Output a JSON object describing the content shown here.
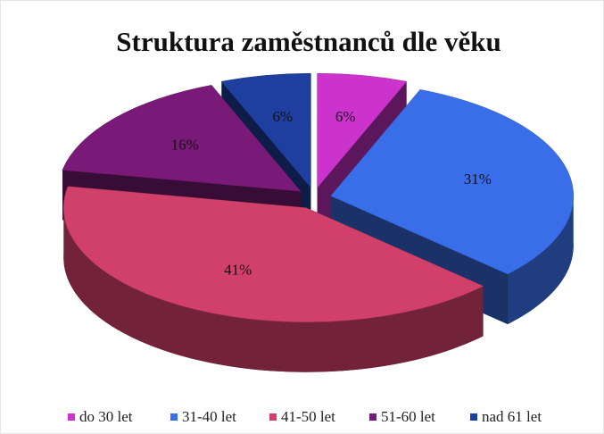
{
  "chart_data": {
    "type": "pie3d",
    "title": "Struktura zaměstnanců dle věku",
    "categories": [
      "do 30 let",
      "31-40 let",
      "41-50 let",
      "51-60 let",
      "nad 61 let"
    ],
    "values": [
      6,
      31,
      41,
      16,
      6
    ],
    "value_labels": [
      "6%",
      "31%",
      "41%",
      "16%",
      "6%"
    ],
    "colors": [
      "#cc33cc",
      "#3a6ee8",
      "#d0406a",
      "#7a1a78",
      "#1f3fa0"
    ],
    "legend": "bottom"
  }
}
